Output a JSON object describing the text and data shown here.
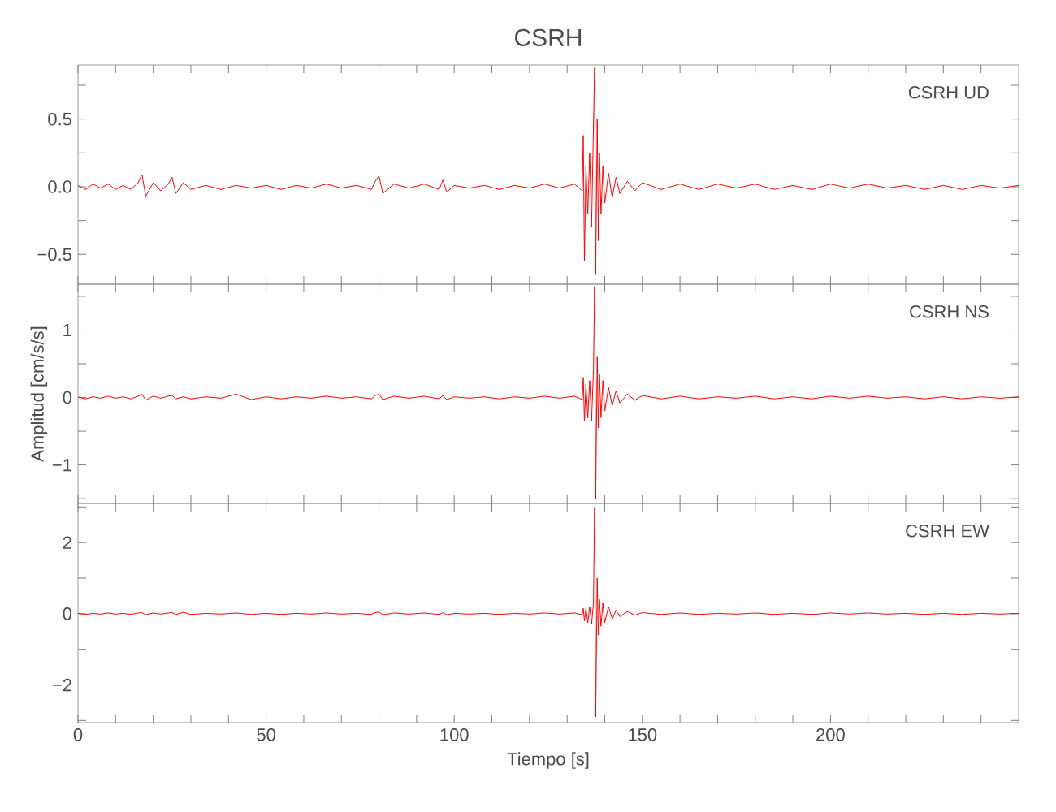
{
  "chart_data": [
    {
      "type": "line",
      "title": "CSRH",
      "annotations": [
        "CSRH UD"
      ],
      "xlim": [
        0,
        250
      ],
      "ylim": [
        -0.72,
        0.9
      ],
      "tick_labels": "y",
      "grid": false,
      "marker": "none",
      "line_style": "solid",
      "xticks": [
        0,
        {
          "value": 10,
          "label": null
        },
        {
          "value": 20,
          "label": null
        },
        {
          "value": 30,
          "label": null
        },
        {
          "value": 40,
          "label": null
        },
        50,
        {
          "value": 60,
          "label": null
        },
        {
          "value": 70,
          "label": null
        },
        {
          "value": 80,
          "label": null
        },
        {
          "value": 90,
          "label": null
        },
        100,
        {
          "value": 110,
          "label": null
        },
        {
          "value": 120,
          "label": null
        },
        {
          "value": 130,
          "label": null
        },
        {
          "value": 140,
          "label": null
        },
        150,
        {
          "value": 160,
          "label": null
        },
        {
          "value": 170,
          "label": null
        },
        {
          "value": 180,
          "label": null
        },
        {
          "value": 190,
          "label": null
        },
        200,
        {
          "value": 210,
          "label": null
        },
        {
          "value": 220,
          "label": null
        },
        {
          "value": 230,
          "label": null
        },
        {
          "value": 240,
          "label": null
        }
      ],
      "yticks": [
        {
          "value": -0.5,
          "label": "−0.5"
        },
        {
          "value": -0.25,
          "label": null
        },
        {
          "value": 0,
          "label": "0.0"
        },
        {
          "value": 0.25,
          "label": null
        },
        0.5,
        {
          "value": 0.75,
          "label": null
        }
      ],
      "x": [
        0,
        2,
        4,
        6,
        8,
        10,
        12,
        14,
        16,
        17,
        18,
        20,
        22,
        24,
        25,
        26,
        28,
        30,
        34,
        38,
        42,
        46,
        50,
        54,
        58,
        62,
        66,
        70,
        74,
        78,
        79,
        80,
        81,
        84,
        88,
        92,
        96,
        97,
        98,
        100,
        104,
        108,
        112,
        116,
        120,
        124,
        128,
        132,
        134,
        134.3,
        134.6,
        135,
        135.5,
        136,
        136.5,
        137,
        137.3,
        137.6,
        138,
        138.3,
        138.6,
        139,
        139.5,
        140,
        141,
        142,
        143,
        144,
        146,
        148,
        150,
        155,
        160,
        165,
        170,
        175,
        180,
        185,
        190,
        195,
        200,
        205,
        210,
        215,
        220,
        225,
        230,
        235,
        240,
        245,
        250
      ],
      "series": [
        {
          "color": "#ff0000",
          "values": [
            0.01,
            -0.02,
            0.02,
            -0.01,
            0.02,
            -0.02,
            0.01,
            -0.02,
            0.03,
            0.09,
            -0.07,
            0.03,
            -0.03,
            0.02,
            0.07,
            -0.05,
            0.03,
            -0.02,
            0.01,
            -0.02,
            0.01,
            -0.01,
            0.01,
            -0.02,
            0.01,
            -0.01,
            0.02,
            -0.01,
            0.01,
            -0.02,
            0.04,
            0.08,
            -0.05,
            0.02,
            -0.01,
            0.02,
            -0.02,
            0.05,
            -0.04,
            0.01,
            -0.01,
            0.01,
            -0.02,
            0.01,
            -0.01,
            0.02,
            -0.01,
            0.02,
            -0.03,
            0.38,
            -0.55,
            0.15,
            -0.2,
            0.25,
            -0.3,
            0.45,
            0.88,
            -0.65,
            0.5,
            -0.4,
            0.25,
            -0.2,
            0.15,
            -0.12,
            0.1,
            -0.08,
            0.07,
            -0.05,
            0.04,
            -0.03,
            0.03,
            -0.02,
            0.02,
            -0.02,
            0.02,
            -0.01,
            0.02,
            -0.02,
            0.01,
            -0.02,
            0.02,
            -0.01,
            0.02,
            -0.01,
            0.01,
            -0.02,
            0.01,
            -0.02,
            0.01,
            -0.01,
            0.01
          ]
        }
      ]
    },
    {
      "type": "line",
      "ylabel": "Amplitud [cm/s/s]",
      "annotations": [
        "CSRH NS"
      ],
      "xlim": [
        0,
        250
      ],
      "ylim": [
        -1.57,
        1.68
      ],
      "tick_labels": "y",
      "grid": false,
      "marker": "none",
      "line_style": "solid",
      "xticks": [
        0,
        {
          "value": 10,
          "label": null
        },
        {
          "value": 20,
          "label": null
        },
        {
          "value": 30,
          "label": null
        },
        {
          "value": 40,
          "label": null
        },
        50,
        {
          "value": 60,
          "label": null
        },
        {
          "value": 70,
          "label": null
        },
        {
          "value": 80,
          "label": null
        },
        {
          "value": 90,
          "label": null
        },
        100,
        {
          "value": 110,
          "label": null
        },
        {
          "value": 120,
          "label": null
        },
        {
          "value": 130,
          "label": null
        },
        {
          "value": 140,
          "label": null
        },
        150,
        {
          "value": 160,
          "label": null
        },
        {
          "value": 170,
          "label": null
        },
        {
          "value": 180,
          "label": null
        },
        {
          "value": 190,
          "label": null
        },
        200,
        {
          "value": 210,
          "label": null
        },
        {
          "value": 220,
          "label": null
        },
        {
          "value": 230,
          "label": null
        },
        {
          "value": 240,
          "label": null
        }
      ],
      "yticks": [
        {
          "value": -1.5,
          "label": null
        },
        {
          "value": -1,
          "label": "−1"
        },
        {
          "value": -0.5,
          "label": null
        },
        0,
        {
          "value": 0.5,
          "label": null
        },
        1,
        {
          "value": 1.5,
          "label": null
        }
      ],
      "x": [
        0,
        2,
        4,
        6,
        8,
        10,
        12,
        14,
        16,
        17,
        18,
        20,
        22,
        24,
        25,
        26,
        28,
        30,
        34,
        38,
        42,
        46,
        50,
        54,
        58,
        62,
        66,
        70,
        74,
        78,
        79,
        80,
        81,
        84,
        88,
        92,
        96,
        97,
        98,
        100,
        104,
        108,
        112,
        116,
        120,
        124,
        128,
        132,
        134,
        134.3,
        134.6,
        135,
        135.5,
        136,
        136.5,
        137,
        137.3,
        137.6,
        138,
        138.3,
        138.6,
        139,
        139.5,
        140,
        141,
        142,
        143,
        144,
        146,
        148,
        150,
        155,
        160,
        165,
        170,
        175,
        180,
        185,
        190,
        195,
        200,
        205,
        210,
        215,
        220,
        225,
        230,
        235,
        240,
        245,
        250
      ],
      "series": [
        {
          "color": "#ff0000",
          "values": [
            0.01,
            -0.02,
            0.01,
            -0.01,
            0.02,
            -0.01,
            0.01,
            -0.02,
            0.02,
            0.05,
            -0.04,
            0.02,
            -0.01,
            0.02,
            0.03,
            -0.02,
            0.01,
            -0.02,
            0.01,
            -0.01,
            0.05,
            -0.03,
            0.01,
            -0.02,
            0.01,
            -0.01,
            0.02,
            -0.01,
            0.01,
            -0.02,
            0.03,
            0.05,
            -0.03,
            0.02,
            -0.01,
            0.02,
            -0.02,
            0.03,
            -0.03,
            0.01,
            -0.01,
            0.01,
            -0.02,
            0.01,
            -0.01,
            0.02,
            -0.01,
            0.02,
            -0.03,
            0.3,
            -0.35,
            0.2,
            -0.3,
            0.25,
            -0.35,
            0.4,
            1.65,
            -1.5,
            0.6,
            -0.45,
            0.35,
            -0.3,
            0.25,
            -0.2,
            0.15,
            -0.12,
            0.1,
            -0.08,
            0.05,
            -0.04,
            0.03,
            -0.02,
            0.02,
            -0.02,
            0.01,
            -0.01,
            0.02,
            -0.02,
            0.01,
            -0.02,
            0.02,
            -0.01,
            0.02,
            -0.01,
            0.01,
            -0.02,
            0.01,
            -0.02,
            0.01,
            -0.01,
            0.01
          ]
        }
      ]
    },
    {
      "type": "line",
      "xlabel": "Tiempo [s]",
      "annotations": [
        "CSRH EW"
      ],
      "xlim": [
        0,
        250
      ],
      "ylim": [
        -3.06,
        3.1
      ],
      "grid": false,
      "marker": "none",
      "line_style": "solid",
      "xticks": [
        0,
        {
          "value": 10,
          "label": null
        },
        {
          "value": 20,
          "label": null
        },
        {
          "value": 30,
          "label": null
        },
        {
          "value": 40,
          "label": null
        },
        50,
        {
          "value": 60,
          "label": null
        },
        {
          "value": 70,
          "label": null
        },
        {
          "value": 80,
          "label": null
        },
        {
          "value": 90,
          "label": null
        },
        100,
        {
          "value": 110,
          "label": null
        },
        {
          "value": 120,
          "label": null
        },
        {
          "value": 130,
          "label": null
        },
        {
          "value": 140,
          "label": null
        },
        150,
        {
          "value": 160,
          "label": null
        },
        {
          "value": 170,
          "label": null
        },
        {
          "value": 180,
          "label": null
        },
        {
          "value": 190,
          "label": null
        },
        200,
        {
          "value": 210,
          "label": null
        },
        {
          "value": 220,
          "label": null
        },
        {
          "value": 230,
          "label": null
        },
        {
          "value": 240,
          "label": null
        }
      ],
      "yticks": [
        {
          "value": -3,
          "label": null
        },
        {
          "value": -2,
          "label": "−2"
        },
        {
          "value": -1,
          "label": null
        },
        0,
        {
          "value": 1,
          "label": null
        },
        2,
        {
          "value": 3,
          "label": null
        }
      ],
      "x": [
        0,
        2,
        4,
        6,
        8,
        10,
        12,
        14,
        16,
        17,
        18,
        20,
        22,
        24,
        25,
        26,
        28,
        30,
        34,
        38,
        42,
        46,
        50,
        54,
        58,
        62,
        66,
        70,
        74,
        78,
        79,
        80,
        81,
        84,
        88,
        92,
        96,
        97,
        98,
        100,
        104,
        108,
        112,
        116,
        120,
        124,
        128,
        132,
        134,
        134.3,
        134.6,
        135,
        135.5,
        136,
        136.5,
        137,
        137.3,
        137.6,
        138,
        138.3,
        138.6,
        139,
        139.5,
        140,
        141,
        142,
        143,
        144,
        146,
        148,
        150,
        155,
        160,
        165,
        170,
        175,
        180,
        185,
        190,
        195,
        200,
        205,
        210,
        215,
        220,
        225,
        230,
        235,
        240,
        245,
        250
      ],
      "series": [
        {
          "color": "#ff0000",
          "values": [
            0.01,
            -0.02,
            0.01,
            -0.01,
            0.02,
            -0.01,
            0.01,
            -0.02,
            0.02,
            0.03,
            -0.03,
            0.02,
            -0.01,
            0.02,
            0.03,
            -0.02,
            0.04,
            -0.02,
            0.01,
            -0.01,
            0.02,
            -0.02,
            0.01,
            -0.02,
            0.01,
            -0.01,
            0.02,
            -0.01,
            0.01,
            -0.02,
            0.03,
            0.05,
            -0.03,
            0.02,
            -0.01,
            0.02,
            -0.02,
            0.03,
            -0.03,
            0.01,
            -0.01,
            0.01,
            -0.02,
            0.01,
            -0.01,
            0.02,
            -0.01,
            0.02,
            -0.03,
            0.15,
            -0.2,
            0.15,
            -0.25,
            0.2,
            -0.3,
            0.3,
            3.0,
            -2.9,
            1.0,
            -0.6,
            0.4,
            -0.35,
            0.3,
            -0.25,
            0.2,
            -0.15,
            0.1,
            -0.08,
            0.06,
            -0.04,
            0.03,
            -0.02,
            0.02,
            -0.02,
            0.01,
            -0.01,
            0.02,
            -0.02,
            0.01,
            -0.02,
            0.02,
            -0.01,
            0.02,
            -0.01,
            0.01,
            -0.02,
            0.01,
            -0.02,
            0.01,
            -0.01,
            0.01
          ]
        }
      ]
    }
  ]
}
